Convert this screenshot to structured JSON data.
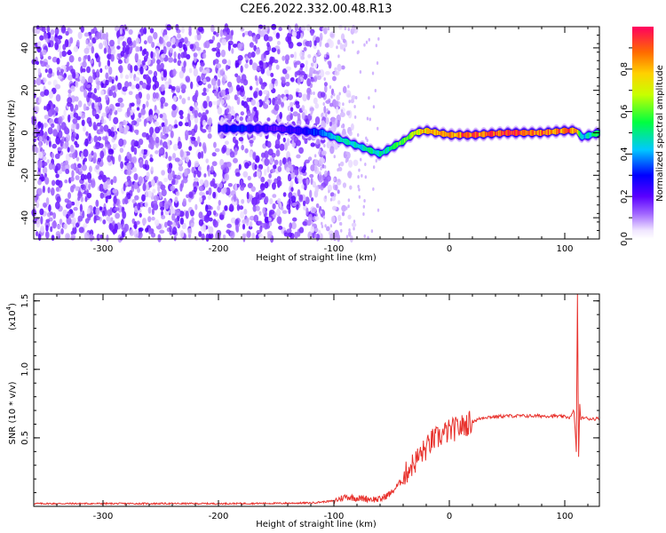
{
  "title": "C2E6.2022.332.00.48.R13",
  "chart_data": [
    {
      "type": "heatmap",
      "title": "C2E6.2022.332.00.48.R13",
      "xlabel": "Height of straight line (km)",
      "ylabel": "Frequency (Hz)",
      "xlim": [
        -360,
        130
      ],
      "ylim": [
        -50,
        50
      ],
      "xticks": [
        -300,
        -200,
        -100,
        0,
        100
      ],
      "yticks": [
        40,
        20,
        0,
        -20,
        -40
      ],
      "xtick_labels": [
        "-300",
        "-200",
        "-100",
        "0",
        "100"
      ],
      "ytick_labels": [
        "40",
        "20",
        "0",
        "-20",
        "-40"
      ],
      "grid": false,
      "colorbar": {
        "label": "Normalized spectral amplitude",
        "range": [
          0,
          1
        ],
        "ticks": [
          0,
          0.2,
          0.4,
          0.6,
          0.8
        ],
        "tick_labels": [
          "0.0",
          "0.2",
          "0.4",
          "0.6",
          "0.8"
        ],
        "colormap": "rainbow (white-purple-blue-cyan-green-yellow-orange-red)"
      },
      "signal_trace": {
        "x": [
          -200,
          -180,
          -150,
          -130,
          -110,
          -100,
          -90,
          -80,
          -70,
          -60,
          -50,
          -40,
          -30,
          -20,
          -10,
          0,
          20,
          50,
          80,
          100,
          110,
          115,
          130
        ],
        "y": [
          2,
          2,
          2,
          1,
          0,
          -2,
          -4,
          -6,
          -8,
          -10,
          -7,
          -4,
          0,
          1,
          0,
          -1,
          -1,
          0,
          0,
          1,
          1,
          -2,
          0
        ],
        "amplitude": [
          0.25,
          0.3,
          0.2,
          0.25,
          0.35,
          0.45,
          0.5,
          0.45,
          0.5,
          0.45,
          0.5,
          0.6,
          0.65,
          0.8,
          0.8,
          0.85,
          0.9,
          0.9,
          0.9,
          0.9,
          0.85,
          0.4,
          0.55
        ]
      },
      "noise_region_x": [
        -360,
        -120
      ]
    },
    {
      "type": "line",
      "title": "",
      "xlabel": "Height of straight line (km)",
      "ylabel": "SNR (10 * v/v)",
      "y_scale_label": "(x10",
      "y_scale_exponent": "4",
      "y_scale_suffix": ")",
      "xlim": [
        -360,
        130
      ],
      "ylim": [
        0,
        15500
      ],
      "xticks": [
        -300,
        -200,
        -100,
        0,
        100
      ],
      "yticks": [
        5000,
        10000,
        15000
      ],
      "xtick_labels": [
        "-300",
        "-200",
        "-100",
        "0",
        "100"
      ],
      "ytick_labels": [
        "0.5",
        "1.0",
        "1.5"
      ],
      "grid": false,
      "series": [
        {
          "color": "#e8322d",
          "x": [
            -360,
            -300,
            -250,
            -200,
            -150,
            -120,
            -100,
            -90,
            -80,
            -70,
            -60,
            -50,
            -45,
            -40,
            -35,
            -30,
            -25,
            -20,
            -15,
            -10,
            -5,
            0,
            10,
            20,
            30,
            50,
            70,
            90,
            105,
            108,
            110,
            111,
            112,
            113,
            114,
            116,
            120,
            130
          ],
          "y": [
            200,
            200,
            200,
            200,
            220,
            250,
            400,
            700,
            600,
            550,
            500,
            1000,
            1500,
            2000,
            2800,
            3200,
            3800,
            4200,
            4800,
            5000,
            5300,
            5500,
            5800,
            6200,
            6500,
            6600,
            6600,
            6600,
            6500,
            7000,
            4000,
            15500,
            3500,
            7500,
            6300,
            6500,
            6400,
            6400
          ]
        }
      ]
    }
  ]
}
